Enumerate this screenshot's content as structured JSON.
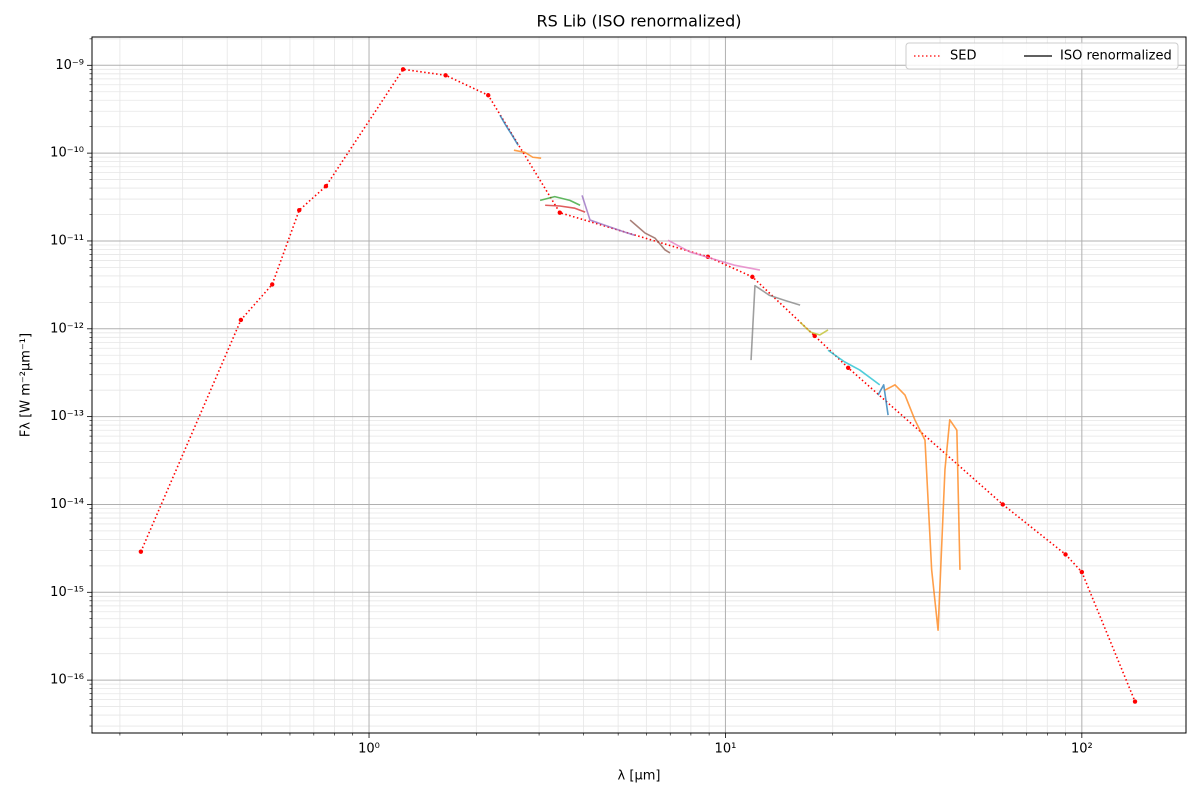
{
  "chart_data": {
    "type": "line",
    "title": "RS Lib (ISO renormalized)",
    "xlabel": "λ [μm]",
    "ylabel": "Fλ [W m⁻²μm⁻¹]",
    "xscale": "log",
    "yscale": "log",
    "xlim": [
      0.167,
      196
    ],
    "ylim": [
      2.5e-17,
      2.1e-09
    ],
    "xticks": [
      {
        "value": 1,
        "label": "10⁰"
      },
      {
        "value": 10,
        "label": "10¹"
      },
      {
        "value": 100,
        "label": "10²"
      }
    ],
    "yticks": [
      {
        "value": 1e-16,
        "label": "10⁻¹⁶"
      },
      {
        "value": 1e-15,
        "label": "10⁻¹⁵"
      },
      {
        "value": 1e-14,
        "label": "10⁻¹⁴"
      },
      {
        "value": 1e-13,
        "label": "10⁻¹³"
      },
      {
        "value": 1e-12,
        "label": "10⁻¹²"
      },
      {
        "value": 1e-11,
        "label": "10⁻¹¹"
      },
      {
        "value": 1e-10,
        "label": "10⁻¹⁰"
      },
      {
        "value": 1e-09,
        "label": "10⁻⁹"
      }
    ],
    "grid": true,
    "minor_grid": true,
    "legend_loc": "upper right",
    "series": [
      {
        "name": "SED",
        "color": "red",
        "linestyle": "dotted",
        "marker": true,
        "x": [
          0.229,
          0.437,
          0.535,
          0.637,
          0.757,
          1.246,
          1.64,
          2.16,
          3.43,
          8.93,
          11.9,
          17.8,
          22.1,
          60,
          90,
          100,
          141
        ],
        "values": [
          2.9e-15,
          1.26e-12,
          3.2e-12,
          2.24e-11,
          4.2e-11,
          9e-10,
          7.7e-10,
          4.56e-10,
          2.1e-11,
          6.6e-12,
          3.9e-12,
          8.3e-13,
          3.6e-13,
          1e-14,
          2.7e-15,
          1.7e-15,
          5.7e-17
        ]
      },
      {
        "name": "ISO renormalized",
        "color": "black",
        "linestyle": "solid",
        "segments": [
          {
            "color": "#1f77b4",
            "x": [
              2.33,
              2.42,
              2.52,
              2.62
            ],
            "values": [
              2.7e-10,
              2.07e-10,
              1.6e-10,
              1.23e-10
            ]
          },
          {
            "color": "#ff7f0e",
            "x": [
              2.55,
              2.74,
              2.88,
              3.04
            ],
            "values": [
              1.08e-10,
              1.02e-10,
              8.98e-11,
              8.75e-11
            ]
          },
          {
            "color": "#2ca02c",
            "x": [
              3.02,
              3.32,
              3.66,
              3.91
            ],
            "values": [
              2.9e-11,
              3.2e-11,
              2.9e-11,
              2.55e-11
            ]
          },
          {
            "color": "#d62728",
            "x": [
              3.12,
              3.43,
              3.78,
              4.04
            ],
            "values": [
              2.55e-11,
              2.5e-11,
              2.36e-11,
              2.13e-11
            ]
          },
          {
            "color": "#9467bd",
            "x": [
              3.96,
              4.17,
              4.59,
              5.22,
              5.57
            ],
            "values": [
              3.3e-11,
              1.73e-11,
              1.51e-11,
              1.26e-11,
              1.16e-11
            ]
          },
          {
            "color": "#8c564b",
            "x": [
              5.4,
              5.95,
              6.34,
              6.77,
              6.99
            ],
            "values": [
              1.73e-11,
              1.23e-11,
              1.08e-11,
              7.9e-12,
              7.3e-12
            ]
          },
          {
            "color": "#e377c2",
            "x": [
              6.9,
              7.95,
              9.05,
              10.6,
              12.5
            ],
            "values": [
              1.02e-11,
              7.5e-12,
              6.4e-12,
              5.3e-12,
              4.66e-12
            ]
          },
          {
            "color": "#7f7f7f",
            "x": [
              11.8,
              12.1,
              13.3,
              14.7,
              16.2
            ],
            "values": [
              4.4e-13,
              3.1e-12,
              2.4e-12,
              2.1e-12,
              1.86e-12
            ]
          },
          {
            "color": "#bcbd22",
            "x": [
              16.2,
              17.3,
              18.4,
              19.4
            ],
            "values": [
              1.19e-12,
              9.2e-13,
              8.5e-13,
              9.7e-13
            ]
          },
          {
            "color": "#17becf",
            "x": [
              19.4,
              21.6,
              23.8,
              27.1
            ],
            "values": [
              5.7e-13,
              4.2e-13,
              3.4e-13,
              2.3e-13
            ]
          },
          {
            "color": "#1f77b4",
            "x": [
              26.8,
              27.8,
              28.6
            ],
            "values": [
              1.76e-13,
              2.3e-13,
              1.04e-13
            ]
          },
          {
            "color": "#ff7f0e",
            "x": [
              28.0,
              29.9,
              31.9,
              34.0,
              36.3,
              37.9,
              39.5,
              41.3,
              42.6,
              44.6,
              45.5
            ],
            "values": [
              2e-13,
              2.3e-13,
              1.76e-13,
              9.2e-14,
              5.4e-14,
              1.8e-15,
              3.7e-16,
              2.5e-14,
              9.2e-14,
              7e-14,
              1.8e-15
            ]
          }
        ]
      }
    ]
  }
}
